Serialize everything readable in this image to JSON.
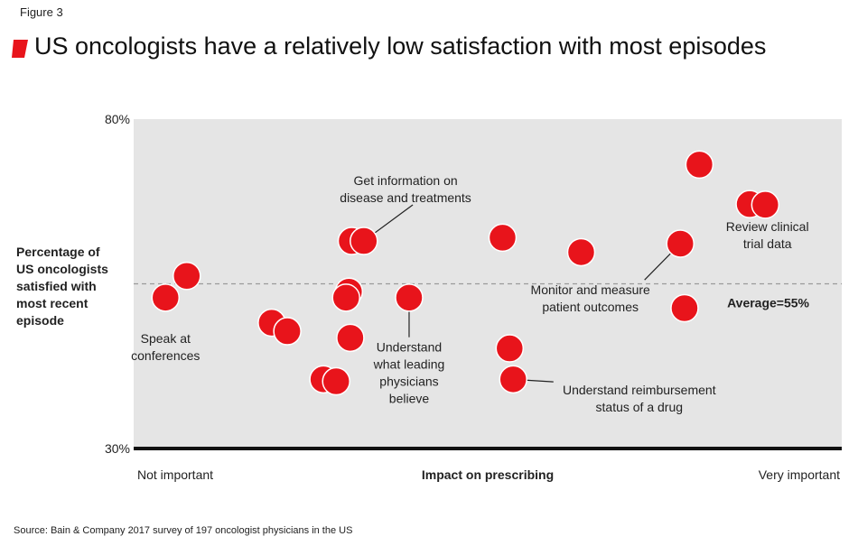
{
  "figure_label": "Figure 3",
  "title": "US oncologists have a relatively low satisfaction with most episodes",
  "source": "Source: Bain & Company 2017 survey of 197 oncologist physicians in the US",
  "colors": {
    "bubble": "#e8141b",
    "title_mark": "#e8141b",
    "plot_bg": "#e5e5e5",
    "avg_line": "#9a9a9a",
    "axis": "#111111"
  },
  "chart_data": {
    "type": "scatter",
    "title": "US oncologists have a relatively low satisfaction with most episodes",
    "xlabel": "Impact on prescribing",
    "x_tick_labels": [
      "Not important",
      "Very important"
    ],
    "ylabel_lines": [
      "Percentage of",
      "US oncologists",
      "satisfied with",
      "most recent",
      "episode"
    ],
    "ylim": [
      30,
      80
    ],
    "xlim": [
      0,
      100
    ],
    "y_tick_labels": [
      "80%",
      "30%"
    ],
    "average": {
      "value": 55,
      "label": "Average=55%"
    },
    "points": [
      {
        "x": 4.5,
        "y": 52.9
      },
      {
        "x": 7.5,
        "y": 56.2
      },
      {
        "x": 19.5,
        "y": 49.1
      },
      {
        "x": 21.7,
        "y": 47.8
      },
      {
        "x": 26.8,
        "y": 40.5
      },
      {
        "x": 28.6,
        "y": 40.2
      },
      {
        "x": 30.4,
        "y": 53.8
      },
      {
        "x": 30.0,
        "y": 52.9
      },
      {
        "x": 30.6,
        "y": 46.8
      },
      {
        "x": 30.8,
        "y": 61.5
      },
      {
        "x": 32.5,
        "y": 61.5
      },
      {
        "x": 38.9,
        "y": 52.9
      },
      {
        "x": 52.1,
        "y": 62.0
      },
      {
        "x": 53.1,
        "y": 45.2
      },
      {
        "x": 53.6,
        "y": 40.5
      },
      {
        "x": 63.2,
        "y": 59.8
      },
      {
        "x": 77.2,
        "y": 61.1
      },
      {
        "x": 79.9,
        "y": 73.1
      },
      {
        "x": 77.8,
        "y": 51.3
      },
      {
        "x": 87.0,
        "y": 67.1
      },
      {
        "x": 89.2,
        "y": 67.0
      }
    ],
    "annotations": [
      {
        "name": "annotation-speak-at-conferences",
        "lines": [
          "Speak at",
          "conferences"
        ],
        "point": 0,
        "anchor": "middle",
        "lx": 4.5,
        "ly": 46.0,
        "leader": false
      },
      {
        "name": "annotation-get-information",
        "lines": [
          "Get information on",
          "disease and treatments"
        ],
        "point": 10,
        "anchor": "middle",
        "lx": 38.4,
        "ly": 70.0,
        "leader": true
      },
      {
        "name": "annotation-understand-leaders",
        "lines": [
          "Understand",
          "what leading",
          "physicians",
          "believe"
        ],
        "point": 11,
        "anchor": "middle",
        "lx": 38.9,
        "ly": 44.7,
        "leader": true
      },
      {
        "name": "annotation-reimbursement",
        "lines": [
          "Understand reimbursement",
          "status of a drug"
        ],
        "point": 14,
        "anchor": "middle",
        "lx": 71.4,
        "ly": 38.2,
        "leader": true
      },
      {
        "name": "annotation-patient-outcomes",
        "lines": [
          "Monitor and measure",
          "patient outcomes"
        ],
        "point": 16,
        "anchor": "middle",
        "lx": 64.5,
        "ly": 53.4,
        "leader": true
      },
      {
        "name": "annotation-clinical-trial",
        "lines": [
          "Review clinical",
          "trial data"
        ],
        "point": 20,
        "anchor": "middle",
        "lx": 89.5,
        "ly": 63.0,
        "leader": true
      }
    ]
  }
}
